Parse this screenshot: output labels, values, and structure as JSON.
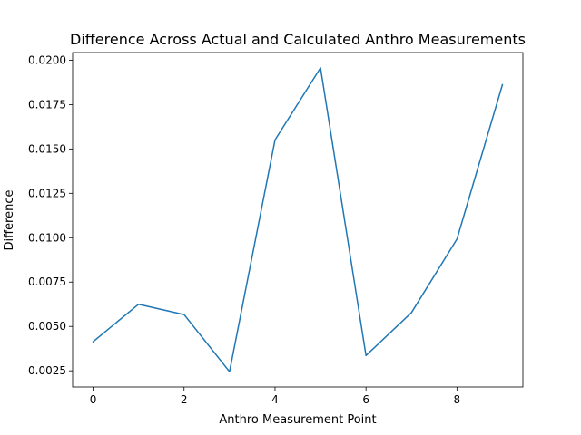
{
  "chart_data": {
    "type": "line",
    "title": "Difference Across Actual and Calculated Anthro Measurements",
    "xlabel": "Anthro Measurement Point",
    "ylabel": "Difference",
    "x": [
      0,
      1,
      2,
      3,
      4,
      5,
      6,
      7,
      8,
      9
    ],
    "series": [
      {
        "values": [
          0.00414,
          0.00625,
          0.00567,
          0.00245,
          0.01551,
          0.01957,
          0.00336,
          0.00578,
          0.00992,
          0.01862
        ],
        "color": "#1f77b4"
      }
    ],
    "xlim": [
      -0.45,
      9.45
    ],
    "ylim": [
      0.00159,
      0.02043
    ],
    "xticks": [
      0,
      2,
      4,
      6,
      8
    ],
    "xtick_labels": [
      "0",
      "2",
      "4",
      "6",
      "8"
    ],
    "yticks": [
      0.0025,
      0.005,
      0.0075,
      0.01,
      0.0125,
      0.015,
      0.0175,
      0.02
    ],
    "ytick_labels": [
      "0.0025",
      "0.0050",
      "0.0075",
      "0.0100",
      "0.0125",
      "0.0150",
      "0.0175",
      "0.0200"
    ],
    "grid": false,
    "legend": false
  }
}
